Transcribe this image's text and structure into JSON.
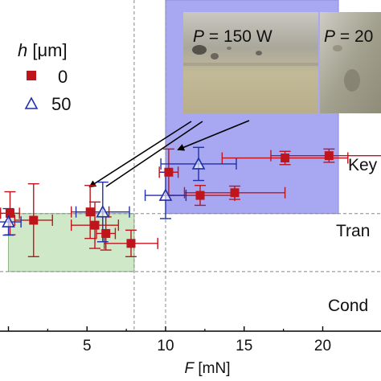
{
  "chart_data": {
    "type": "scatter",
    "xlabel_var": "F",
    "xlabel_unit": "[mN]",
    "xlim": [
      -0.3,
      21.0
    ],
    "ylim": [
      0,
      1
    ],
    "xticks": [
      0,
      5,
      10,
      15,
      20
    ],
    "x_tick_labels": [
      "",
      "5",
      "10",
      "15",
      "20"
    ],
    "grid": false,
    "legend": {
      "title_var": "h",
      "title_unit": "[μm]",
      "placement": "top-left",
      "entries": [
        "0",
        "50"
      ]
    },
    "series": [
      {
        "name": "0",
        "marker": "filled-square",
        "color": "#c0141c",
        "points": [
          {
            "x": 0.1,
            "y": 0.356,
            "xerr": 0.6,
            "yerr": 0.065
          },
          {
            "x": 1.6,
            "y": 0.335,
            "xerr": 1.2,
            "yerr": 0.11
          },
          {
            "x": 5.2,
            "y": 0.36,
            "xerr": 1.2,
            "yerr": 0.08
          },
          {
            "x": 5.5,
            "y": 0.32,
            "xerr": 1.5,
            "yerr": 0.07
          },
          {
            "x": 6.2,
            "y": 0.295,
            "xerr": 0.6,
            "yerr": 0.05
          },
          {
            "x": 7.8,
            "y": 0.265,
            "xerr": 1.7,
            "yerr": 0.04
          },
          {
            "x": 10.2,
            "y": 0.48,
            "xerr": 0.6,
            "yerr": 0.07
          },
          {
            "x": 12.2,
            "y": 0.41,
            "xerr": 2.2,
            "yerr": 0.03
          },
          {
            "x": 14.4,
            "y": 0.418,
            "xerr": 3.2,
            "yerr": 0.02
          },
          {
            "x": 17.6,
            "y": 0.523,
            "xerr": 4.0,
            "yerr": 0.02
          },
          {
            "x": 20.4,
            "y": 0.53,
            "xerr": 3.7,
            "yerr": 0.02
          }
        ]
      },
      {
        "name": "50",
        "marker": "open-triangle",
        "color": "#1f2fae",
        "points": [
          {
            "x": 0.0,
            "y": 0.33,
            "xerr": 0.8,
            "yerr": 0.04
          },
          {
            "x": 6.0,
            "y": 0.36,
            "xerr": 1.7,
            "yerr": 0.09
          },
          {
            "x": 10.0,
            "y": 0.41,
            "xerr": 1.3,
            "yerr": 0.07
          },
          {
            "x": 12.1,
            "y": 0.505,
            "xerr": 2.4,
            "yerr": 0.05
          }
        ]
      }
    ],
    "regions": [
      {
        "label": "Key",
        "x0": 10.0,
        "x1": 21.0,
        "y0": 0.355,
        "y1": 1.0,
        "color": "#a7a8f1"
      },
      {
        "label": "Tran",
        "x0": 0.0,
        "x1": 8.0,
        "y0": 0.18,
        "y1": 0.355,
        "color": "#cfe8c8"
      },
      {
        "label": "Cond",
        "x0": 0.0,
        "x1": 0.0,
        "y0": 0.0,
        "y1": 0.18,
        "color": "#ffffff"
      }
    ],
    "thresholds": {
      "x": [
        8.0,
        10.0
      ],
      "y": [
        0.18,
        0.355
      ]
    },
    "photos": [
      {
        "label_var": "P",
        "label_rest": " = 150 W"
      },
      {
        "label_var": "P",
        "label_rest": " = 20"
      }
    ]
  }
}
